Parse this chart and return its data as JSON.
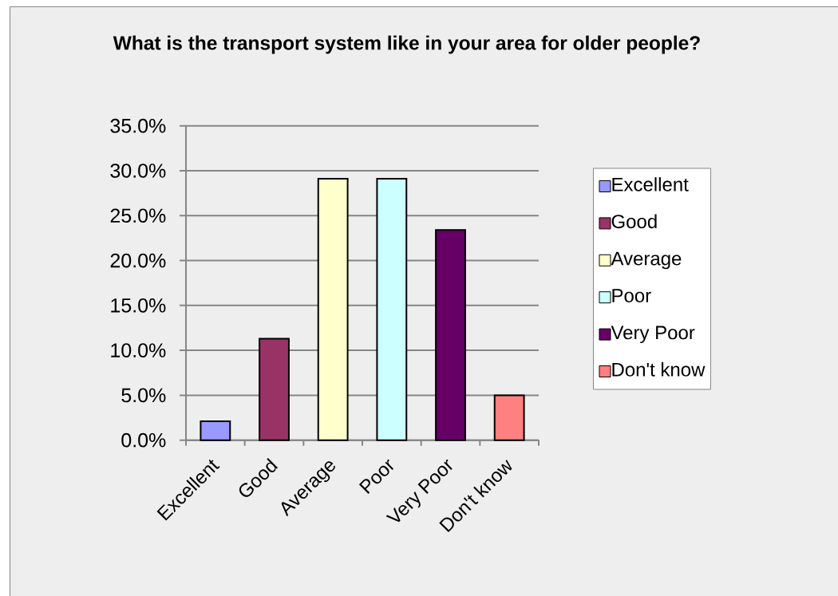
{
  "chart_data": {
    "type": "bar",
    "title": "What is the transport system like in your area for older people?",
    "categories": [
      "Excellent",
      "Good",
      "Average",
      "Poor",
      "Very Poor",
      "Don't know"
    ],
    "series": [
      {
        "name": "Excellent",
        "color": "#9999ff",
        "values": [
          2.1,
          null,
          null,
          null,
          null,
          null
        ]
      },
      {
        "name": "Good",
        "color": "#993366",
        "values": [
          null,
          11.3,
          null,
          null,
          null,
          null
        ]
      },
      {
        "name": "Average",
        "color": "#ffffcc",
        "values": [
          null,
          null,
          29.1,
          null,
          null,
          null
        ]
      },
      {
        "name": "Poor",
        "color": "#ccffff",
        "values": [
          null,
          null,
          null,
          29.1,
          null,
          null
        ]
      },
      {
        "name": "Very Poor",
        "color": "#660066",
        "values": [
          null,
          null,
          null,
          null,
          23.4,
          null
        ]
      },
      {
        "name": "Don't know",
        "color": "#ff8080",
        "values": [
          null,
          null,
          null,
          null,
          null,
          5.0
        ]
      }
    ],
    "stacked": true,
    "ylim": [
      0,
      35
    ],
    "yticks": [
      {
        "value": 0,
        "label": "0.0%"
      },
      {
        "value": 5,
        "label": "5.0%"
      },
      {
        "value": 10,
        "label": "10.0%"
      },
      {
        "value": 15,
        "label": "15.0%"
      },
      {
        "value": 20,
        "label": "20.0%"
      },
      {
        "value": 25,
        "label": "25.0%"
      },
      {
        "value": 30,
        "label": "30.0%"
      },
      {
        "value": 35,
        "label": "35.0%"
      }
    ],
    "grid": "y",
    "legend": "right"
  }
}
